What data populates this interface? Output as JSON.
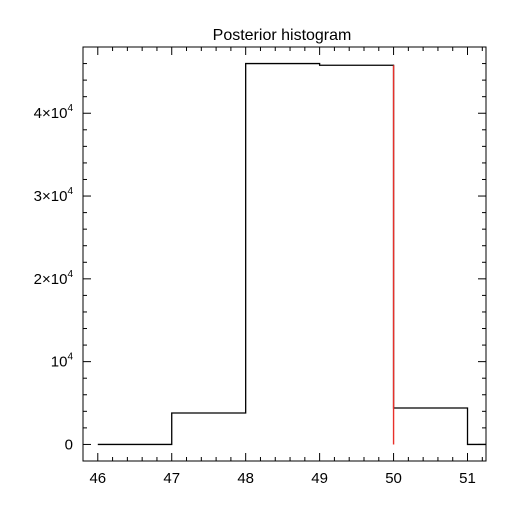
{
  "chart_data": {
    "type": "histogram",
    "title": "Posterior histogram",
    "xlabel": "",
    "ylabel": "",
    "xlim": [
      45.8,
      51.25
    ],
    "ylim": [
      -2000,
      48000
    ],
    "x_ticks": [
      46,
      47,
      48,
      49,
      50,
      51
    ],
    "y_ticks": [
      {
        "value": 0,
        "mantissa": "0",
        "exponent": ""
      },
      {
        "value": 10000,
        "mantissa": "10",
        "exponent": "4"
      },
      {
        "value": 20000,
        "mantissa": "2×10",
        "exponent": "4"
      },
      {
        "value": 30000,
        "mantissa": "3×10",
        "exponent": "4"
      },
      {
        "value": 40000,
        "mantissa": "4×10",
        "exponent": "4"
      }
    ],
    "bins": [
      {
        "x0": 46,
        "x1": 47,
        "count": 0
      },
      {
        "x0": 47,
        "x1": 48,
        "count": 3800
      },
      {
        "x0": 48,
        "x1": 49,
        "count": 46000
      },
      {
        "x0": 49,
        "x1": 50,
        "count": 45800
      },
      {
        "x0": 50,
        "x1": 51,
        "count": 4400
      },
      {
        "x0": 51,
        "x1": 51.25,
        "count": 0
      }
    ],
    "reference_line": {
      "x": 50,
      "y_top": 45800,
      "color": "#e8302a"
    },
    "grid": false,
    "colors": {
      "histogram": "#000000",
      "reference_line": "#e8302a"
    }
  }
}
